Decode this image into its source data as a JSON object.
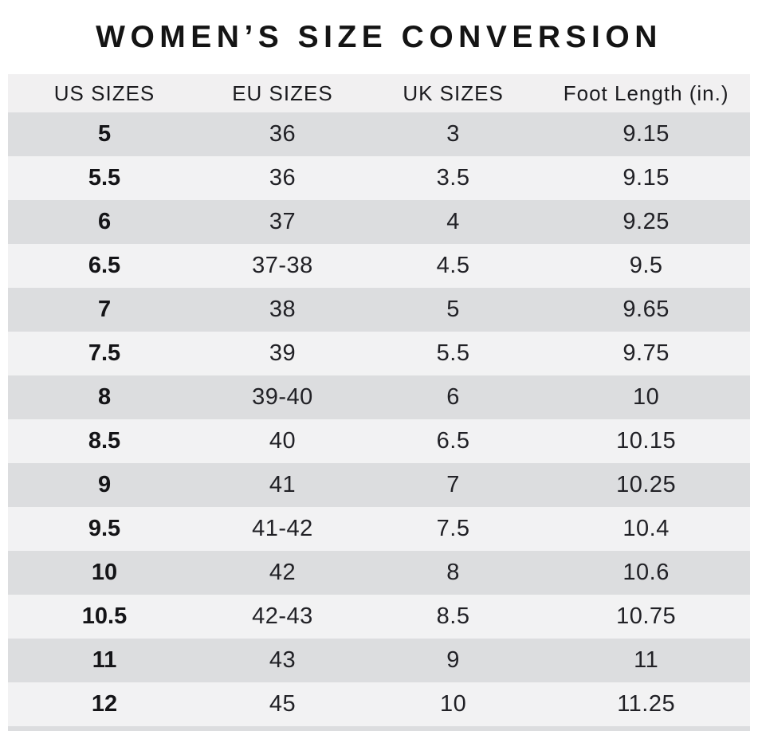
{
  "chart_data": {
    "type": "table",
    "title": "WOMEN’S SIZE CONVERSION",
    "columns": [
      "US SIZES",
      "EU SIZES",
      "UK SIZES",
      "Foot Length (in.)"
    ],
    "rows": [
      [
        "5",
        "36",
        "3",
        "9.15"
      ],
      [
        "5.5",
        "36",
        "3.5",
        "9.15"
      ],
      [
        "6",
        "37",
        "4",
        "9.25"
      ],
      [
        "6.5",
        "37-38",
        "4.5",
        "9.5"
      ],
      [
        "7",
        "38",
        "5",
        "9.65"
      ],
      [
        "7.5",
        "39",
        "5.5",
        "9.75"
      ],
      [
        "8",
        "39-40",
        "6",
        "10"
      ],
      [
        "8.5",
        "40",
        "6.5",
        "10.15"
      ],
      [
        "9",
        "41",
        "7",
        "10.25"
      ],
      [
        "9.5",
        "41-42",
        "7.5",
        "10.4"
      ],
      [
        "10",
        "42",
        "8",
        "10.6"
      ],
      [
        "10.5",
        "42-43",
        "8.5",
        "10.75"
      ],
      [
        "11",
        "43",
        "9",
        "11"
      ],
      [
        "12",
        "45",
        "10",
        "11.25"
      ]
    ],
    "layout": {
      "header_bg": "#f1f0f1",
      "row_odd_bg": "#dcdddf",
      "row_even_bg": "#f2f2f3",
      "page_bg": "#ffffff",
      "title_color": "#141414",
      "text_color": "#212126"
    }
  }
}
